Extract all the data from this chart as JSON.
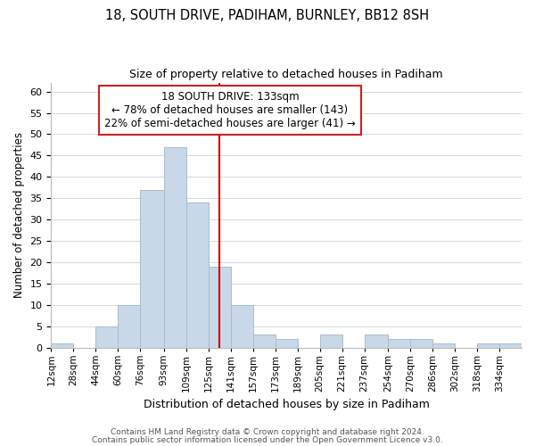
{
  "title": "18, SOUTH DRIVE, PADIHAM, BURNLEY, BB12 8SH",
  "subtitle": "Size of property relative to detached houses in Padiham",
  "xlabel": "Distribution of detached houses by size in Padiham",
  "ylabel": "Number of detached properties",
  "bin_edges": [
    12,
    28,
    44,
    60,
    76,
    93,
    109,
    125,
    141,
    157,
    173,
    189,
    205,
    221,
    237,
    254,
    270,
    286,
    302,
    318,
    334,
    350
  ],
  "bin_labels": [
    "12sqm",
    "28sqm",
    "44sqm",
    "60sqm",
    "76sqm",
    "93sqm",
    "109sqm",
    "125sqm",
    "141sqm",
    "157sqm",
    "173sqm",
    "189sqm",
    "205sqm",
    "221sqm",
    "237sqm",
    "254sqm",
    "270sqm",
    "286sqm",
    "302sqm",
    "318sqm",
    "334sqm"
  ],
  "counts": [
    1,
    0,
    5,
    10,
    37,
    47,
    34,
    19,
    10,
    3,
    2,
    0,
    3,
    0,
    3,
    2,
    2,
    1,
    0,
    1,
    1
  ],
  "bar_color": "#c8d8e8",
  "bar_edge_color": "#a8bece",
  "vline_x": 133,
  "vline_color": "#cc0000",
  "ylim": [
    0,
    62
  ],
  "yticks": [
    0,
    5,
    10,
    15,
    20,
    25,
    30,
    35,
    40,
    45,
    50,
    55,
    60
  ],
  "annotation_title": "18 SOUTH DRIVE: 133sqm",
  "annotation_line1": "← 78% of detached houses are smaller (143)",
  "annotation_line2": "22% of semi-detached houses are larger (41) →",
  "footer_line1": "Contains HM Land Registry data © Crown copyright and database right 2024.",
  "footer_line2": "Contains public sector information licensed under the Open Government Licence v3.0.",
  "background_color": "#ffffff",
  "grid_color": "#d0d8e0"
}
